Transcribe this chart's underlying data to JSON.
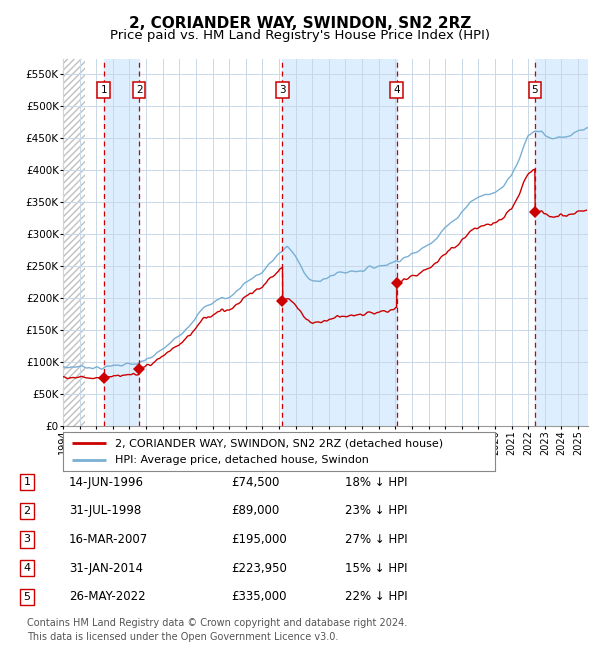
{
  "title": "2, CORIANDER WAY, SWINDON, SN2 2RZ",
  "subtitle": "Price paid vs. HM Land Registry's House Price Index (HPI)",
  "ylim": [
    0,
    575000
  ],
  "yticks": [
    0,
    50000,
    100000,
    150000,
    200000,
    250000,
    300000,
    350000,
    400000,
    450000,
    500000,
    550000
  ],
  "ytick_labels": [
    "£0",
    "£50K",
    "£100K",
    "£150K",
    "£200K",
    "£250K",
    "£300K",
    "£350K",
    "£400K",
    "£450K",
    "£500K",
    "£550K"
  ],
  "xlim_start": 1994.0,
  "xlim_end": 2025.6,
  "hpi_color": "#7aafd4",
  "price_color": "#cc0000",
  "dashed_color": "#cc0000",
  "background_color": "#ffffff",
  "grid_color": "#c8d8e8",
  "sale_band_color": "#ddeeff",
  "transactions": [
    {
      "num": 1,
      "date_str": "14-JUN-1996",
      "year": 1996.45,
      "price": 74500,
      "pct": "18%",
      "price_label": "£74,500"
    },
    {
      "num": 2,
      "date_str": "31-JUL-1998",
      "year": 1998.58,
      "price": 89000,
      "pct": "23%",
      "price_label": "£89,000"
    },
    {
      "num": 3,
      "date_str": "16-MAR-2007",
      "year": 2007.21,
      "price": 195000,
      "pct": "27%",
      "price_label": "£195,000"
    },
    {
      "num": 4,
      "date_str": "31-JAN-2014",
      "year": 2014.08,
      "price": 223950,
      "pct": "15%",
      "price_label": "£223,950"
    },
    {
      "num": 5,
      "date_str": "26-MAY-2022",
      "year": 2022.4,
      "price": 335000,
      "pct": "22%",
      "price_label": "£335,000"
    }
  ],
  "legend_line1": "2, CORIANDER WAY, SWINDON, SN2 2RZ (detached house)",
  "legend_line2": "HPI: Average price, detached house, Swindon",
  "footer": "Contains HM Land Registry data © Crown copyright and database right 2024.\nThis data is licensed under the Open Government Licence v3.0."
}
